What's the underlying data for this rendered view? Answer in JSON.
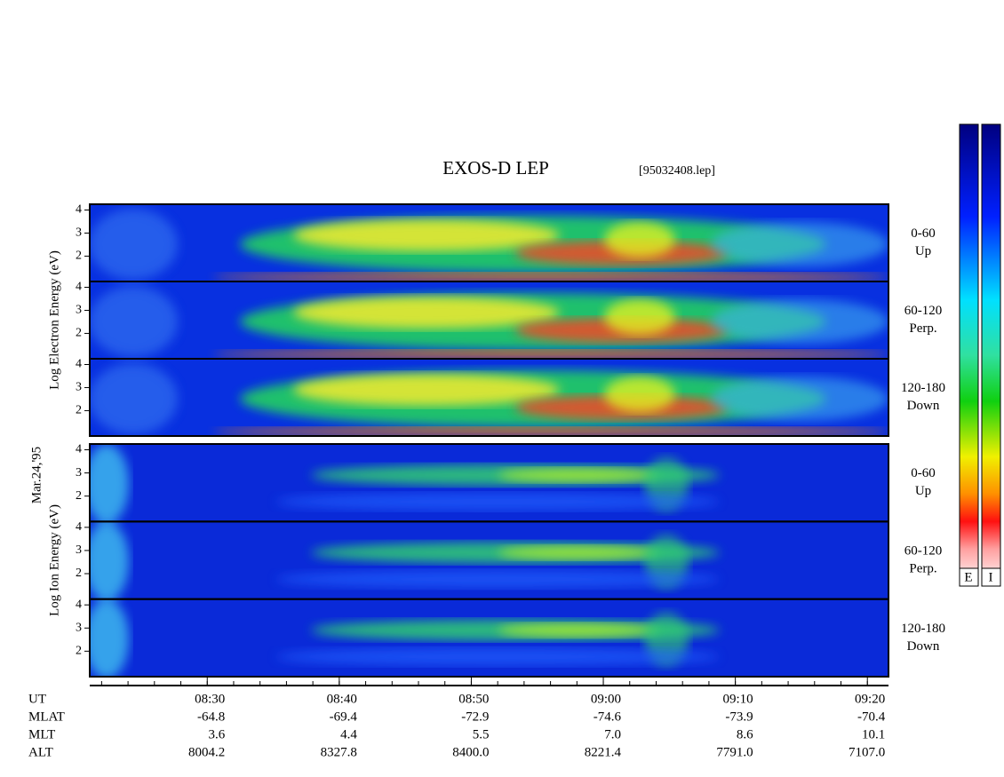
{
  "chart_data": {
    "type": "spectrogram",
    "title": "EXOS-D LEP",
    "subtitle": "[95032408.lep]",
    "date_label": "Mar.24,'95",
    "groups": [
      {
        "ylabel": "Log Electron Energy (eV)",
        "panels": [
          {
            "angle": "0-60",
            "direction": "Up"
          },
          {
            "angle": "60-120",
            "direction": "Perp."
          },
          {
            "angle": "120-180",
            "direction": "Down"
          }
        ]
      },
      {
        "ylabel": "Log Ion Energy (eV)",
        "panels": [
          {
            "angle": "0-60",
            "direction": "Up"
          },
          {
            "angle": "60-120",
            "direction": "Perp."
          },
          {
            "angle": "120-180",
            "direction": "Down"
          }
        ]
      }
    ],
    "ylim": [
      0.9,
      4.25
    ],
    "yticks": [
      2,
      3,
      4
    ],
    "xlim": [
      501.1,
      561.6
    ],
    "xticks": [
      {
        "value": 510,
        "label": "08:30"
      },
      {
        "value": 520,
        "label": "08:40"
      },
      {
        "value": 530,
        "label": "08:50"
      },
      {
        "value": 540,
        "label": "09:00"
      },
      {
        "value": 550,
        "label": "09:10"
      },
      {
        "value": 560,
        "label": "09:20"
      }
    ],
    "xminor_step": 2,
    "table": {
      "ut_label": "UT",
      "rows": [
        {
          "label": "MLAT",
          "values": [
            "-64.8",
            "-69.4",
            "-72.9",
            "-74.6",
            "-73.9",
            "-70.4"
          ]
        },
        {
          "label": "MLT",
          "values": [
            "3.6",
            "4.4",
            "5.5",
            "7.0",
            "8.6",
            "10.1"
          ]
        },
        {
          "label": "ALT",
          "values": [
            "8004.2",
            "8327.8",
            "8400.0",
            "8221.4",
            "7791.0",
            "7107.0"
          ]
        }
      ]
    },
    "colorbar_labels": [
      "E",
      "I"
    ]
  }
}
